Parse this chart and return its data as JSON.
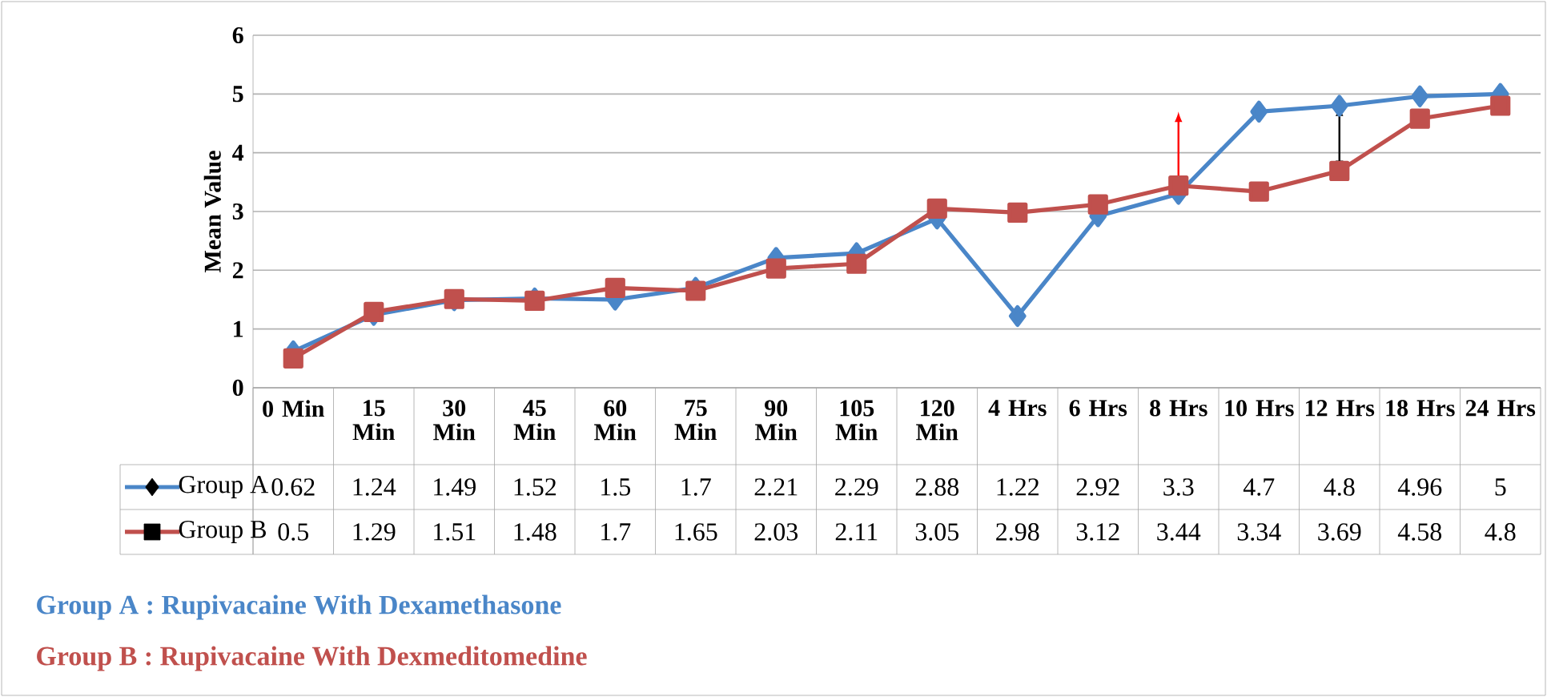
{
  "chart_data": {
    "type": "line",
    "ylabel": "Mean Value",
    "categories": [
      "0 Min",
      "15 Min",
      "30 Min",
      "45 Min",
      "60 Min",
      "75 Min",
      "90 Min",
      "105 Min",
      "120 Min",
      "4 Hrs",
      "6 Hrs",
      "8 Hrs",
      "10 Hrs",
      "12 Hrs",
      "18 Hrs",
      "24 Hrs"
    ],
    "series": [
      {
        "name": "Group A",
        "color": "#4a86c8",
        "marker": "diamond",
        "values": [
          0.62,
          1.24,
          1.49,
          1.52,
          1.5,
          1.7,
          2.21,
          2.29,
          2.88,
          1.22,
          2.92,
          3.3,
          4.7,
          4.8,
          4.96,
          5
        ]
      },
      {
        "name": "Group B",
        "color": "#c0504d",
        "marker": "square",
        "values": [
          0.5,
          1.29,
          1.51,
          1.48,
          1.7,
          1.65,
          2.03,
          2.11,
          3.05,
          2.98,
          3.12,
          3.44,
          3.34,
          3.69,
          4.58,
          4.8
        ]
      }
    ],
    "ylim": [
      0,
      6
    ],
    "yticks": [
      0,
      1,
      2,
      3,
      4,
      5,
      6
    ],
    "grid": "y",
    "legend": "bottom",
    "data_labels": true,
    "line_style": "solid",
    "annotations": [
      "Group  A : Rupivacaine With Dexamethasone",
      "Group  B : Rupivacaine With Dexmeditomedine"
    ]
  }
}
